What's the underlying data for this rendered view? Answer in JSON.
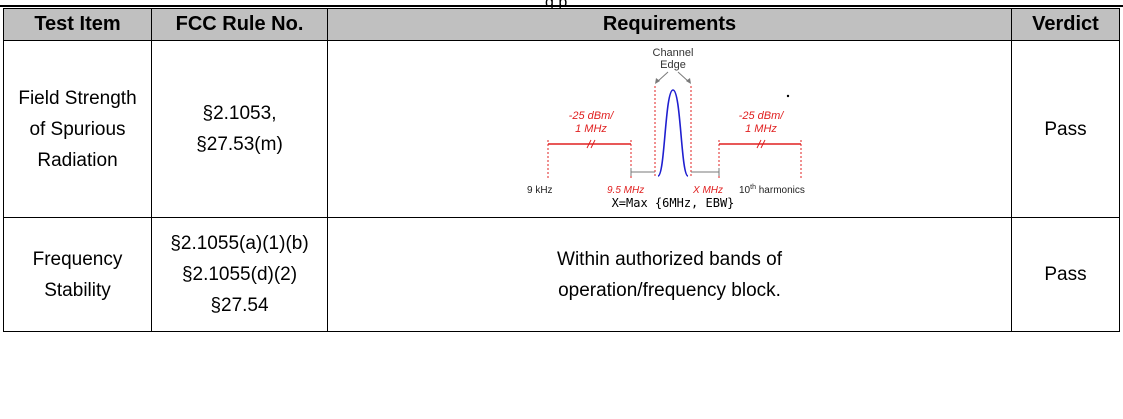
{
  "cut_heading_fragment": "g                          p",
  "table": {
    "headers": [
      "Test Item",
      "FCC Rule No.",
      "Requirements",
      "Verdict"
    ],
    "rows": [
      {
        "test_item": [
          "Field Strength",
          "of Spurious",
          "Radiation"
        ],
        "rule": [
          "§2.1053,",
          "§27.53(m)"
        ],
        "verdict": "Pass"
      },
      {
        "test_item": [
          "Frequency",
          "Stability"
        ],
        "rule": [
          "§2.1055(a)(1)(b)",
          "§2.1055(d)(2)",
          "§27.54"
        ],
        "requirement": [
          "Within authorized bands of",
          "operation/frequency block."
        ],
        "verdict": "Pass"
      }
    ]
  },
  "diagram": {
    "channel_label": [
      "Channel",
      "Edge"
    ],
    "limit_left": [
      "-25 dBm/",
      "1 MHz"
    ],
    "limit_right": [
      "-25 dBm/",
      "1 MHz"
    ],
    "f_start": "9 kHz",
    "f_low": "9.5 MHz",
    "f_x": "X MHz",
    "f_end_base": "10",
    "f_end_sup": "th",
    "f_end_rest": " harmonics",
    "formula": "X=Max {6MHz, EBW}",
    "colors": {
      "limit": "#e02020",
      "signal": "#1f1fd0",
      "guide": "#7a7a7a"
    }
  }
}
